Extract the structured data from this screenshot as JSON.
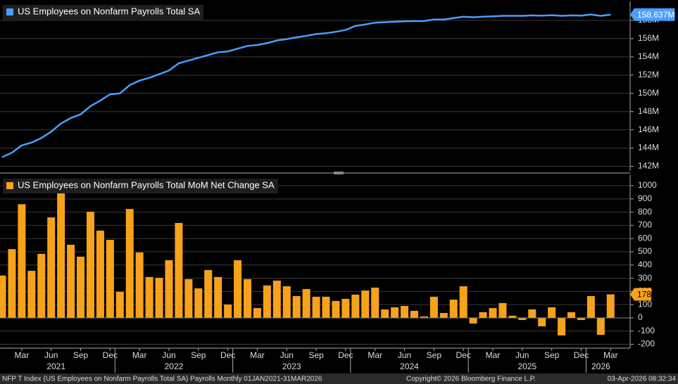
{
  "chart_data": [
    {
      "type": "line",
      "legend": "US Employees on Nonfarm Payrolls Total SA",
      "color": "#4a9eff",
      "last_value_label": "158.637M",
      "values": [
        143.0,
        143.5,
        144.3,
        144.6,
        145.1,
        145.8,
        146.7,
        147.3,
        147.7,
        148.6,
        149.2,
        149.9,
        150.0,
        150.9,
        151.4,
        151.7,
        152.1,
        152.5,
        153.3,
        153.6,
        153.9,
        154.2,
        154.5,
        154.6,
        154.9,
        155.2,
        155.3,
        155.5,
        155.8,
        155.95,
        156.15,
        156.3,
        156.5,
        156.6,
        156.75,
        156.95,
        157.4,
        157.55,
        157.75,
        157.8,
        157.85,
        157.9,
        157.92,
        157.93,
        158.1,
        158.1,
        158.25,
        158.4,
        158.35,
        158.4,
        158.45,
        158.5,
        158.5,
        158.5,
        158.55,
        158.52,
        158.57,
        158.5,
        158.55,
        158.52,
        158.65,
        158.5,
        158.637
      ],
      "ylim": [
        141.5,
        159.85
      ],
      "yticks": [
        {
          "value": 142,
          "label": "142M"
        },
        {
          "value": 144,
          "label": "144M"
        },
        {
          "value": 146,
          "label": "146M"
        },
        {
          "value": 148,
          "label": "148M"
        },
        {
          "value": 150,
          "label": "150M"
        },
        {
          "value": 152,
          "label": "152M"
        },
        {
          "value": 154,
          "label": "154M"
        },
        {
          "value": 156,
          "label": "156M"
        },
        {
          "value": 158,
          "label": "158M"
        }
      ],
      "grid": true
    },
    {
      "type": "bar",
      "legend": "US Employees on Nonfarm Payrolls Total MoM Net Change SA",
      "color": "#f7a21b",
      "categories": [
        null,
        null,
        "Mar",
        null,
        null,
        "Jun",
        null,
        null,
        "Sep",
        null,
        null,
        "Dec",
        null,
        null,
        "Mar",
        null,
        null,
        "Jun",
        null,
        null,
        "Sep",
        null,
        null,
        "Dec",
        null,
        null,
        "Mar",
        null,
        null,
        "Jun",
        null,
        null,
        "Sep",
        null,
        null,
        "Dec",
        null,
        null,
        "Mar",
        null,
        null,
        "Jun",
        null,
        null,
        "Sep",
        null,
        null,
        "Dec",
        null,
        null,
        "Mar",
        null,
        null,
        "Jun",
        null,
        null,
        "Sep",
        null,
        null,
        "Dec",
        null,
        null,
        "Mar"
      ],
      "years": [
        "2021",
        "2022",
        "2023",
        "2024",
        "2025",
        "2026"
      ],
      "values": [
        320,
        520,
        860,
        356,
        484,
        760,
        950,
        553,
        463,
        803,
        660,
        590,
        197,
        824,
        495,
        309,
        303,
        436,
        718,
        293,
        223,
        362,
        309,
        101,
        436,
        293,
        74,
        245,
        282,
        239,
        165,
        218,
        160,
        160,
        128,
        144,
        176,
        207,
        229,
        64,
        80,
        90,
        53,
        11,
        160,
        37,
        138,
        239,
        -43,
        43,
        74,
        112,
        16,
        -16,
        64,
        -64,
        80,
        -133,
        43,
        -16,
        165,
        -128,
        178
      ],
      "ylim": [
        -229,
        1064
      ],
      "yticks": [
        -200,
        -100,
        0,
        100,
        200,
        300,
        400,
        500,
        600,
        700,
        800,
        900,
        1000
      ],
      "grid": true
    }
  ],
  "footer": {
    "source": "NFP T Index (US Employees on Nonfarm Payrolls Total SA) Payrolls Monthly 01JAN2021-31MAR2026",
    "copyright": "Copyright© 2026 Bloomberg Finance L.P.",
    "timestamp": "03-Apr-2026 08:32:34"
  }
}
